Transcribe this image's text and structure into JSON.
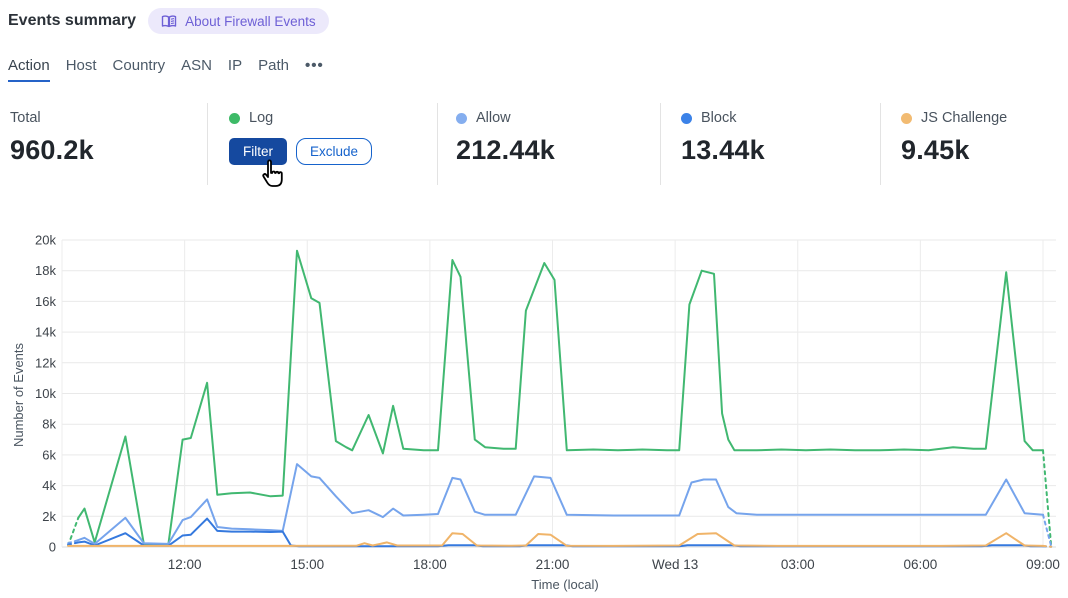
{
  "header": {
    "title": "Events summary",
    "about_badge": "About Firewall Events"
  },
  "tabs": {
    "items": [
      {
        "label": "Action",
        "active": true
      },
      {
        "label": "Host",
        "active": false
      },
      {
        "label": "Country",
        "active": false
      },
      {
        "label": "ASN",
        "active": false
      },
      {
        "label": "IP",
        "active": false
      },
      {
        "label": "Path",
        "active": false
      }
    ],
    "more_label": "•••"
  },
  "stats": {
    "cards": [
      {
        "label": "Total",
        "value": "960.2k"
      },
      {
        "label": "Log",
        "dot_color": "#3dba67",
        "buttons": {
          "filter": "Filter",
          "exclude": "Exclude"
        }
      },
      {
        "label": "Allow",
        "dot_color": "#85aeef",
        "value": "212.44k"
      },
      {
        "label": "Block",
        "dot_color": "#3b82e8",
        "value": "13.44k"
      },
      {
        "label": "JS Challenge",
        "dot_color": "#f2bb72",
        "value": "9.45k"
      }
    ]
  },
  "chart_data": {
    "type": "line",
    "title": "",
    "xlabel": "Time (local)",
    "ylabel": "Number of Events",
    "unit": "thousands of events",
    "ylim": [
      0,
      20
    ],
    "grid": true,
    "legend": "shown as stat cards above chart",
    "x_axis_hours_span": 24,
    "y_ticks": [
      {
        "v": 0,
        "label": "0"
      },
      {
        "v": 2,
        "label": "2k"
      },
      {
        "v": 4,
        "label": "4k"
      },
      {
        "v": 6,
        "label": "6k"
      },
      {
        "v": 8,
        "label": "8k"
      },
      {
        "v": 10,
        "label": "10k"
      },
      {
        "v": 12,
        "label": "12k"
      },
      {
        "v": 14,
        "label": "14k"
      },
      {
        "v": 16,
        "label": "16k"
      },
      {
        "v": 18,
        "label": "18k"
      },
      {
        "v": 20,
        "label": "20k"
      }
    ],
    "x_ticks": [
      {
        "t": 3,
        "label": "12:00"
      },
      {
        "t": 6,
        "label": "15:00"
      },
      {
        "t": 9,
        "label": "18:00"
      },
      {
        "t": 12,
        "label": "21:00"
      },
      {
        "t": 15,
        "label": "Wed 13"
      },
      {
        "t": 18,
        "label": "03:00"
      },
      {
        "t": 21,
        "label": "06:00"
      },
      {
        "t": 24,
        "label": "09:00"
      }
    ],
    "series": [
      {
        "name": "Log",
        "color": "#41b871",
        "dash_start_until": 0.4,
        "dash_end_from": 24.0,
        "points": [
          [
            0.15,
            0.1
          ],
          [
            0.4,
            1.9
          ],
          [
            0.55,
            2.5
          ],
          [
            0.8,
            0.3
          ],
          [
            1.55,
            7.2
          ],
          [
            2.0,
            0.2
          ],
          [
            2.3,
            0.15
          ],
          [
            2.6,
            0.15
          ],
          [
            2.95,
            7.0
          ],
          [
            3.15,
            7.1
          ],
          [
            3.55,
            10.7
          ],
          [
            3.8,
            3.4
          ],
          [
            4.15,
            3.5
          ],
          [
            4.6,
            3.55
          ],
          [
            5.1,
            3.3
          ],
          [
            5.4,
            3.35
          ],
          [
            5.75,
            19.3
          ],
          [
            6.1,
            16.2
          ],
          [
            6.3,
            15.9
          ],
          [
            6.7,
            6.9
          ],
          [
            6.95,
            6.5
          ],
          [
            7.1,
            6.3
          ],
          [
            7.5,
            8.6
          ],
          [
            7.85,
            6.1
          ],
          [
            8.1,
            9.2
          ],
          [
            8.35,
            6.4
          ],
          [
            8.85,
            6.3
          ],
          [
            9.2,
            6.3
          ],
          [
            9.55,
            18.7
          ],
          [
            9.75,
            17.6
          ],
          [
            10.1,
            7.0
          ],
          [
            10.35,
            6.5
          ],
          [
            10.8,
            6.4
          ],
          [
            11.1,
            6.4
          ],
          [
            11.35,
            15.4
          ],
          [
            11.8,
            18.5
          ],
          [
            12.05,
            17.4
          ],
          [
            12.35,
            6.3
          ],
          [
            13.0,
            6.35
          ],
          [
            13.6,
            6.3
          ],
          [
            14.2,
            6.35
          ],
          [
            14.8,
            6.3
          ],
          [
            15.1,
            6.3
          ],
          [
            15.35,
            15.8
          ],
          [
            15.65,
            18.0
          ],
          [
            15.95,
            17.8
          ],
          [
            16.15,
            8.7
          ],
          [
            16.3,
            7.0
          ],
          [
            16.45,
            6.3
          ],
          [
            17.0,
            6.3
          ],
          [
            17.6,
            6.35
          ],
          [
            18.2,
            6.3
          ],
          [
            18.8,
            6.35
          ],
          [
            19.4,
            6.3
          ],
          [
            20.0,
            6.3
          ],
          [
            20.6,
            6.35
          ],
          [
            21.2,
            6.3
          ],
          [
            21.8,
            6.5
          ],
          [
            22.3,
            6.4
          ],
          [
            22.6,
            6.4
          ],
          [
            23.1,
            17.9
          ],
          [
            23.55,
            6.9
          ],
          [
            23.75,
            6.3
          ],
          [
            24.0,
            6.3
          ],
          [
            24.2,
            0.05
          ]
        ]
      },
      {
        "name": "Allow",
        "color": "#76a4ec",
        "dash_start_until": 0.4,
        "dash_end_from": 24.0,
        "points": [
          [
            0.15,
            0.25
          ],
          [
            0.4,
            0.45
          ],
          [
            0.55,
            0.6
          ],
          [
            0.8,
            0.2
          ],
          [
            1.55,
            1.9
          ],
          [
            2.0,
            0.25
          ],
          [
            2.6,
            0.2
          ],
          [
            2.95,
            1.75
          ],
          [
            3.15,
            1.95
          ],
          [
            3.55,
            3.1
          ],
          [
            3.8,
            1.3
          ],
          [
            4.15,
            1.2
          ],
          [
            4.6,
            1.15
          ],
          [
            5.1,
            1.1
          ],
          [
            5.4,
            1.05
          ],
          [
            5.75,
            5.4
          ],
          [
            6.1,
            4.6
          ],
          [
            6.3,
            4.5
          ],
          [
            6.7,
            3.3
          ],
          [
            6.95,
            2.6
          ],
          [
            7.1,
            2.2
          ],
          [
            7.5,
            2.4
          ],
          [
            7.85,
            1.95
          ],
          [
            8.1,
            2.5
          ],
          [
            8.35,
            2.05
          ],
          [
            8.85,
            2.1
          ],
          [
            9.2,
            2.15
          ],
          [
            9.55,
            4.5
          ],
          [
            9.75,
            4.4
          ],
          [
            10.1,
            2.3
          ],
          [
            10.35,
            2.1
          ],
          [
            11.1,
            2.1
          ],
          [
            11.55,
            4.6
          ],
          [
            11.95,
            4.5
          ],
          [
            12.35,
            2.1
          ],
          [
            13.5,
            2.05
          ],
          [
            15.1,
            2.05
          ],
          [
            15.4,
            4.2
          ],
          [
            15.7,
            4.4
          ],
          [
            16.0,
            4.4
          ],
          [
            16.3,
            2.6
          ],
          [
            16.5,
            2.2
          ],
          [
            17.0,
            2.1
          ],
          [
            19.0,
            2.1
          ],
          [
            21.0,
            2.1
          ],
          [
            22.6,
            2.1
          ],
          [
            23.1,
            4.4
          ],
          [
            23.55,
            2.2
          ],
          [
            24.0,
            2.1
          ],
          [
            24.2,
            0.05
          ]
        ]
      },
      {
        "name": "Block",
        "color": "#3579de",
        "dash_start_until": 0.4,
        "dash_end_from": 24.0,
        "points": [
          [
            0.15,
            0.15
          ],
          [
            0.4,
            0.3
          ],
          [
            0.55,
            0.35
          ],
          [
            0.8,
            0.1
          ],
          [
            1.55,
            0.9
          ],
          [
            2.0,
            0.1
          ],
          [
            2.6,
            0.08
          ],
          [
            2.95,
            0.75
          ],
          [
            3.15,
            0.8
          ],
          [
            3.55,
            1.85
          ],
          [
            3.8,
            1.05
          ],
          [
            4.15,
            1.0
          ],
          [
            4.6,
            1.0
          ],
          [
            5.1,
            0.98
          ],
          [
            5.4,
            1.0
          ],
          [
            5.6,
            0.1
          ],
          [
            5.8,
            0.05
          ],
          [
            9.2,
            0.05
          ],
          [
            9.45,
            0.12
          ],
          [
            10.1,
            0.12
          ],
          [
            10.3,
            0.05
          ],
          [
            11.2,
            0.05
          ],
          [
            11.4,
            0.12
          ],
          [
            12.3,
            0.12
          ],
          [
            12.5,
            0.05
          ],
          [
            15.1,
            0.05
          ],
          [
            15.3,
            0.12
          ],
          [
            16.4,
            0.12
          ],
          [
            16.6,
            0.05
          ],
          [
            22.5,
            0.05
          ],
          [
            22.75,
            0.12
          ],
          [
            23.5,
            0.12
          ],
          [
            23.7,
            0.05
          ],
          [
            24.0,
            0.05
          ],
          [
            24.2,
            0.02
          ]
        ]
      },
      {
        "name": "JS Challenge",
        "color": "#f0b469",
        "dash_start_until": 0.15,
        "dash_end_from": 24.0,
        "points": [
          [
            0.15,
            0.07
          ],
          [
            1.0,
            0.07
          ],
          [
            3.0,
            0.07
          ],
          [
            5.0,
            0.07
          ],
          [
            7.2,
            0.08
          ],
          [
            7.4,
            0.25
          ],
          [
            7.6,
            0.1
          ],
          [
            7.95,
            0.3
          ],
          [
            8.2,
            0.1
          ],
          [
            9.3,
            0.1
          ],
          [
            9.55,
            0.9
          ],
          [
            9.8,
            0.85
          ],
          [
            10.15,
            0.1
          ],
          [
            11.0,
            0.08
          ],
          [
            11.35,
            0.1
          ],
          [
            11.65,
            0.85
          ],
          [
            11.95,
            0.8
          ],
          [
            12.35,
            0.08
          ],
          [
            13.5,
            0.07
          ],
          [
            15.1,
            0.1
          ],
          [
            15.55,
            0.85
          ],
          [
            16.0,
            0.9
          ],
          [
            16.45,
            0.1
          ],
          [
            17.5,
            0.07
          ],
          [
            19.5,
            0.07
          ],
          [
            21.5,
            0.07
          ],
          [
            22.6,
            0.1
          ],
          [
            23.1,
            0.9
          ],
          [
            23.55,
            0.1
          ],
          [
            24.0,
            0.07
          ],
          [
            24.2,
            0.02
          ]
        ]
      }
    ]
  }
}
